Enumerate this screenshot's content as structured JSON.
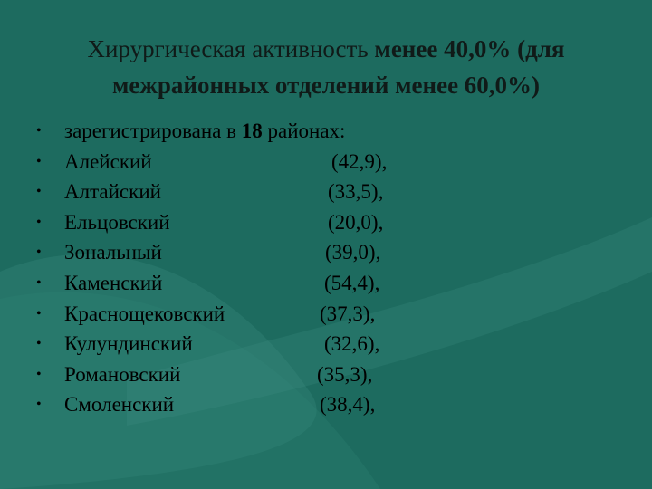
{
  "title": {
    "line1_regular": "Хирургическая активность ",
    "line1_bold": "менее 40,0% (для",
    "line2_bold": "межрайонных отделений менее 60,0%)"
  },
  "intro": {
    "bullet": "•",
    "text_before": "зарегистрирована в ",
    "count": "18",
    "text_after": " районах:"
  },
  "districts": [
    {
      "bullet": "•",
      "name": "Алейский",
      "value": "(42,9),"
    },
    {
      "bullet": "•",
      "name": "Алтайский",
      "value": "(33,5),"
    },
    {
      "bullet": "•",
      "name": "Ельцовский",
      "value": "(20,0),"
    },
    {
      "bullet": "•",
      "name": "Зональный",
      "value": "(39,0),"
    },
    {
      "bullet": "•",
      "name": "Каменский",
      "value": "(54,4),"
    },
    {
      "bullet": "•",
      "name": "Краснощековский",
      "value": "(37,3),"
    },
    {
      "bullet": "•",
      "name": "Кулундинский",
      "value": "(32,6),"
    },
    {
      "bullet": "•",
      "name": "Романовский",
      "value": "(35,3),"
    },
    {
      "bullet": "•",
      "name": "Смоленский",
      "value": "(38,4),"
    }
  ],
  "colors": {
    "background": "#1d6b5f",
    "swoosh": "#3a8a7d",
    "text": "#000000"
  }
}
